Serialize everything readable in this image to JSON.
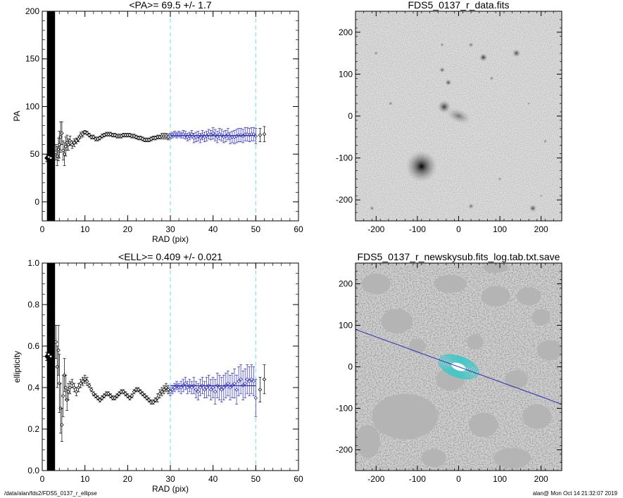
{
  "chart_data": [
    {
      "type": "scatter",
      "title": "<PA>=  69.5 +/-   1.7",
      "xlabel": "RAD (pix)",
      "ylabel": "PA",
      "xlim": [
        0,
        60
      ],
      "ylim": [
        -20,
        200
      ],
      "xticks": [
        0,
        10,
        20,
        30,
        40,
        50,
        60
      ],
      "yticks": [
        0,
        50,
        100,
        150,
        200
      ],
      "vlines": [
        30,
        50
      ],
      "fit": {
        "x": [
          30,
          50
        ],
        "y": 69.5
      },
      "fit_color": "#2a2ab8",
      "points": [
        [
          1.0,
          46,
          4
        ],
        [
          1.5,
          47,
          5
        ],
        [
          2.0,
          46,
          6
        ],
        [
          3.2,
          52,
          8
        ],
        [
          3.5,
          48,
          10
        ],
        [
          3.8,
          55,
          12
        ],
        [
          4.0,
          60,
          14
        ],
        [
          4.3,
          68,
          16
        ],
        [
          4.6,
          72,
          12
        ],
        [
          4.9,
          54,
          10
        ],
        [
          5.2,
          50,
          12
        ],
        [
          5.5,
          58,
          10
        ],
        [
          5.8,
          62,
          8
        ],
        [
          6.1,
          60,
          6
        ],
        [
          6.5,
          64,
          5
        ],
        [
          7.0,
          60,
          4
        ],
        [
          7.5,
          62,
          4
        ],
        [
          8.0,
          64,
          3
        ],
        [
          8.5,
          66,
          3
        ],
        [
          9.0,
          70,
          3
        ],
        [
          9.5,
          71,
          3
        ],
        [
          10.0,
          73,
          2
        ],
        [
          10.5,
          72,
          2
        ],
        [
          11.0,
          70,
          2
        ],
        [
          11.5,
          68,
          2
        ],
        [
          12.0,
          68,
          2
        ],
        [
          12.5,
          66,
          2
        ],
        [
          13.0,
          66,
          2
        ],
        [
          13.5,
          67,
          2
        ],
        [
          14.0,
          69,
          2
        ],
        [
          14.5,
          70,
          2
        ],
        [
          15.0,
          71,
          2
        ],
        [
          15.5,
          71,
          2
        ],
        [
          16.0,
          71,
          2
        ],
        [
          16.5,
          70,
          2
        ],
        [
          17.0,
          70,
          2
        ],
        [
          17.5,
          69,
          2
        ],
        [
          18.0,
          69,
          2
        ],
        [
          18.5,
          69,
          2
        ],
        [
          19.0,
          70,
          2
        ],
        [
          19.5,
          70,
          2
        ],
        [
          20.0,
          70,
          2
        ],
        [
          20.5,
          70,
          2
        ],
        [
          21.0,
          69,
          2
        ],
        [
          21.5,
          69,
          2
        ],
        [
          22.0,
          68,
          2
        ],
        [
          22.5,
          67,
          2
        ],
        [
          23.0,
          67,
          2
        ],
        [
          23.5,
          66,
          2
        ],
        [
          24.0,
          65,
          2
        ],
        [
          24.5,
          65,
          2
        ],
        [
          25.0,
          65,
          2
        ],
        [
          25.5,
          66,
          2
        ],
        [
          26.0,
          67,
          2
        ],
        [
          26.5,
          67,
          2
        ],
        [
          27.0,
          68,
          2
        ],
        [
          27.5,
          68,
          2
        ],
        [
          28.0,
          69,
          3
        ],
        [
          28.5,
          69,
          3
        ],
        [
          29.0,
          69,
          3
        ],
        [
          29.5,
          68,
          3
        ],
        [
          30.0,
          69,
          3
        ],
        [
          30.5,
          70,
          3
        ],
        [
          31.0,
          71,
          3
        ],
        [
          31.5,
          70,
          3
        ],
        [
          32.0,
          71,
          3
        ],
        [
          32.5,
          70,
          3
        ],
        [
          33.0,
          71,
          4
        ],
        [
          33.5,
          70,
          4
        ],
        [
          34.0,
          68,
          4
        ],
        [
          34.5,
          69,
          4
        ],
        [
          35.0,
          71,
          4
        ],
        [
          35.5,
          67,
          5
        ],
        [
          36.0,
          68,
          5
        ],
        [
          36.5,
          69,
          5
        ],
        [
          37.0,
          67,
          5
        ],
        [
          37.5,
          70,
          5
        ],
        [
          38.0,
          68,
          5
        ],
        [
          38.5,
          69,
          5
        ],
        [
          39.0,
          71,
          5
        ],
        [
          39.5,
          70,
          5
        ],
        [
          40.0,
          72,
          6
        ],
        [
          40.5,
          70,
          6
        ],
        [
          41.0,
          68,
          6
        ],
        [
          41.5,
          71,
          6
        ],
        [
          42.0,
          70,
          6
        ],
        [
          42.5,
          68,
          6
        ],
        [
          43.0,
          69,
          6
        ],
        [
          43.5,
          71,
          6
        ],
        [
          44.0,
          67,
          6
        ],
        [
          44.5,
          68,
          6
        ],
        [
          45.0,
          68,
          7
        ],
        [
          45.5,
          69,
          7
        ],
        [
          46.0,
          70,
          7
        ],
        [
          46.5,
          70,
          7
        ],
        [
          47.0,
          69,
          7
        ],
        [
          47.5,
          71,
          7
        ],
        [
          48.0,
          71,
          7
        ],
        [
          48.5,
          70,
          7
        ],
        [
          49.0,
          71,
          7
        ],
        [
          49.5,
          71,
          7
        ],
        [
          50.0,
          69,
          8
        ],
        [
          51.0,
          70,
          7
        ],
        [
          52.0,
          71,
          8
        ]
      ]
    },
    {
      "type": "scatter",
      "title": "<ELL>= 0.409 +/-  0.021",
      "xlabel": "RAD (pix)",
      "ylabel": "ellipticity",
      "xlim": [
        0,
        60
      ],
      "ylim": [
        0,
        1
      ],
      "xticks": [
        0,
        10,
        20,
        30,
        40,
        50,
        60
      ],
      "yticks": [
        0.0,
        0.2,
        0.4,
        0.6,
        0.8,
        1.0
      ],
      "vlines": [
        30,
        50
      ],
      "fit": {
        "x": [
          30,
          50
        ],
        "y": 0.409
      },
      "fit_color": "#2a2ab8",
      "points": [
        [
          1.0,
          0.55,
          0.02
        ],
        [
          1.5,
          0.56,
          0.03
        ],
        [
          2.0,
          0.55,
          0.04
        ],
        [
          3.2,
          0.62,
          0.08
        ],
        [
          3.5,
          0.5,
          0.1
        ],
        [
          3.8,
          0.58,
          0.12
        ],
        [
          4.0,
          0.42,
          0.14
        ],
        [
          4.3,
          0.3,
          0.12
        ],
        [
          4.6,
          0.22,
          0.08
        ],
        [
          4.9,
          0.36,
          0.1
        ],
        [
          5.2,
          0.46,
          0.08
        ],
        [
          5.5,
          0.4,
          0.06
        ],
        [
          5.8,
          0.34,
          0.05
        ],
        [
          6.1,
          0.38,
          0.04
        ],
        [
          6.5,
          0.4,
          0.03
        ],
        [
          7.0,
          0.42,
          0.02
        ],
        [
          7.5,
          0.4,
          0.02
        ],
        [
          8.0,
          0.38,
          0.02
        ],
        [
          8.5,
          0.4,
          0.02
        ],
        [
          9.0,
          0.42,
          0.02
        ],
        [
          9.5,
          0.43,
          0.02
        ],
        [
          10.0,
          0.44,
          0.02
        ],
        [
          10.5,
          0.43,
          0.02
        ],
        [
          11.0,
          0.41,
          0.01
        ],
        [
          11.5,
          0.39,
          0.01
        ],
        [
          12.0,
          0.37,
          0.01
        ],
        [
          12.5,
          0.36,
          0.01
        ],
        [
          13.0,
          0.35,
          0.01
        ],
        [
          13.5,
          0.34,
          0.01
        ],
        [
          14.0,
          0.35,
          0.01
        ],
        [
          14.5,
          0.36,
          0.01
        ],
        [
          15.0,
          0.37,
          0.01
        ],
        [
          15.5,
          0.37,
          0.01
        ],
        [
          16.0,
          0.36,
          0.01
        ],
        [
          16.5,
          0.35,
          0.01
        ],
        [
          17.0,
          0.35,
          0.01
        ],
        [
          17.5,
          0.36,
          0.01
        ],
        [
          18.0,
          0.37,
          0.01
        ],
        [
          18.5,
          0.38,
          0.01
        ],
        [
          19.0,
          0.38,
          0.01
        ],
        [
          19.5,
          0.37,
          0.01
        ],
        [
          20.0,
          0.36,
          0.01
        ],
        [
          20.5,
          0.35,
          0.01
        ],
        [
          21.0,
          0.36,
          0.01
        ],
        [
          21.5,
          0.38,
          0.01
        ],
        [
          22.0,
          0.39,
          0.01
        ],
        [
          22.5,
          0.39,
          0.01
        ],
        [
          23.0,
          0.38,
          0.01
        ],
        [
          23.5,
          0.37,
          0.01
        ],
        [
          24.0,
          0.36,
          0.01
        ],
        [
          24.5,
          0.35,
          0.01
        ],
        [
          25.0,
          0.34,
          0.01
        ],
        [
          25.5,
          0.33,
          0.01
        ],
        [
          26.0,
          0.33,
          0.01
        ],
        [
          26.5,
          0.34,
          0.01
        ],
        [
          27.0,
          0.35,
          0.02
        ],
        [
          27.5,
          0.37,
          0.02
        ],
        [
          28.0,
          0.38,
          0.02
        ],
        [
          28.5,
          0.39,
          0.02
        ],
        [
          29.0,
          0.4,
          0.02
        ],
        [
          29.5,
          0.39,
          0.02
        ],
        [
          30.0,
          0.38,
          0.02
        ],
        [
          30.5,
          0.39,
          0.02
        ],
        [
          31.0,
          0.4,
          0.02
        ],
        [
          31.5,
          0.41,
          0.02
        ],
        [
          32.0,
          0.4,
          0.02
        ],
        [
          32.5,
          0.4,
          0.03
        ],
        [
          33.0,
          0.41,
          0.03
        ],
        [
          33.5,
          0.42,
          0.03
        ],
        [
          34.0,
          0.4,
          0.03
        ],
        [
          34.5,
          0.41,
          0.03
        ],
        [
          35.0,
          0.4,
          0.03
        ],
        [
          35.5,
          0.41,
          0.04
        ],
        [
          36.0,
          0.39,
          0.04
        ],
        [
          36.5,
          0.38,
          0.04
        ],
        [
          37.0,
          0.4,
          0.04
        ],
        [
          37.5,
          0.41,
          0.04
        ],
        [
          38.0,
          0.39,
          0.04
        ],
        [
          38.5,
          0.4,
          0.05
        ],
        [
          39.0,
          0.41,
          0.05
        ],
        [
          39.5,
          0.39,
          0.05
        ],
        [
          40.0,
          0.4,
          0.05
        ],
        [
          40.5,
          0.38,
          0.06
        ],
        [
          41.0,
          0.41,
          0.06
        ],
        [
          41.5,
          0.4,
          0.06
        ],
        [
          42.0,
          0.39,
          0.06
        ],
        [
          42.5,
          0.4,
          0.06
        ],
        [
          43.0,
          0.41,
          0.06
        ],
        [
          43.5,
          0.42,
          0.06
        ],
        [
          44.0,
          0.4,
          0.06
        ],
        [
          44.5,
          0.41,
          0.06
        ],
        [
          45.0,
          0.42,
          0.07
        ],
        [
          45.5,
          0.39,
          0.07
        ],
        [
          46.0,
          0.43,
          0.07
        ],
        [
          46.5,
          0.44,
          0.07
        ],
        [
          47.0,
          0.41,
          0.07
        ],
        [
          47.5,
          0.42,
          0.07
        ],
        [
          48.0,
          0.44,
          0.07
        ],
        [
          48.5,
          0.43,
          0.07
        ],
        [
          49.0,
          0.44,
          0.07
        ],
        [
          49.5,
          0.43,
          0.07
        ],
        [
          50.0,
          0.35,
          0.09
        ],
        [
          51.0,
          0.39,
          0.06
        ],
        [
          52.0,
          0.44,
          0.07
        ]
      ]
    },
    {
      "type": "heatmap",
      "title": "FDS5_0137_r_data.fits",
      "xlim": [
        -250,
        250
      ],
      "ylim": [
        -250,
        250
      ],
      "xticks": [
        -200,
        -100,
        0,
        100,
        200
      ],
      "yticks": [
        -200,
        -100,
        0,
        100,
        200
      ],
      "sources": [
        [
          -90,
          -120,
          38,
          1.0
        ],
        [
          -35,
          22,
          16,
          0.75
        ],
        [
          0,
          0,
          24,
          0.45
        ],
        [
          -25,
          80,
          8,
          0.7
        ],
        [
          60,
          140,
          10,
          0.8
        ],
        [
          140,
          150,
          10,
          0.7
        ],
        [
          -40,
          110,
          7,
          0.6
        ],
        [
          30,
          170,
          6,
          0.55
        ],
        [
          80,
          90,
          5,
          0.5
        ],
        [
          -40,
          170,
          5,
          0.45
        ],
        [
          180,
          -220,
          9,
          0.7
        ],
        [
          -210,
          -220,
          6,
          0.5
        ],
        [
          30,
          -215,
          7,
          0.55
        ],
        [
          -165,
          30,
          5,
          0.5
        ],
        [
          210,
          -60,
          5,
          0.45
        ],
        [
          100,
          -150,
          5,
          0.4
        ],
        [
          -200,
          150,
          5,
          0.45
        ],
        [
          170,
          30,
          4,
          0.4
        ],
        [
          200,
          -190,
          4,
          0.35
        ]
      ]
    },
    {
      "type": "heatmap",
      "title": "FDS5_0137_r_newskysub.fits_log.tab.txt.save",
      "xlim": [
        -250,
        250
      ],
      "ylim": [
        -250,
        250
      ],
      "xticks": [
        -200,
        -100,
        0,
        100,
        200
      ],
      "yticks": [
        -200,
        -100,
        0,
        100,
        200
      ],
      "line": [
        [
          -250,
          90
        ],
        [
          250,
          -90
        ]
      ],
      "line_color": "#2a2ab8",
      "ellipse_color": "#3cc8c8",
      "ellipses": [
        [
          0,
          0,
          50
        ],
        [
          0,
          0,
          45
        ],
        [
          0,
          0,
          40
        ],
        [
          0,
          0,
          35
        ],
        [
          0,
          0,
          30
        ],
        [
          0,
          0,
          25
        ],
        [
          0,
          0,
          20
        ]
      ],
      "masks": [
        [
          -130,
          -120,
          80,
          55
        ],
        [
          -20,
          -30,
          35,
          28
        ],
        [
          -150,
          110,
          38,
          30
        ],
        [
          -20,
          200,
          40,
          22
        ],
        [
          90,
          170,
          35,
          25
        ],
        [
          170,
          170,
          30,
          22
        ],
        [
          220,
          40,
          30,
          25
        ],
        [
          140,
          -30,
          28,
          22
        ],
        [
          -220,
          -180,
          30,
          40
        ],
        [
          60,
          -140,
          35,
          30
        ],
        [
          130,
          -220,
          45,
          25
        ],
        [
          -200,
          200,
          35,
          25
        ],
        [
          40,
          60,
          20,
          18
        ],
        [
          190,
          -120,
          35,
          30
        ],
        [
          -60,
          -220,
          30,
          22
        ],
        [
          90,
          240,
          30,
          14
        ],
        [
          -100,
          50,
          20,
          18
        ],
        [
          200,
          120,
          22,
          20
        ]
      ]
    }
  ],
  "footer": {
    "left": "/data/alan/fds2/FDS5_0137_r_ellipse",
    "right": "alan@  Mon Oct 14 21:32:07 2019"
  }
}
